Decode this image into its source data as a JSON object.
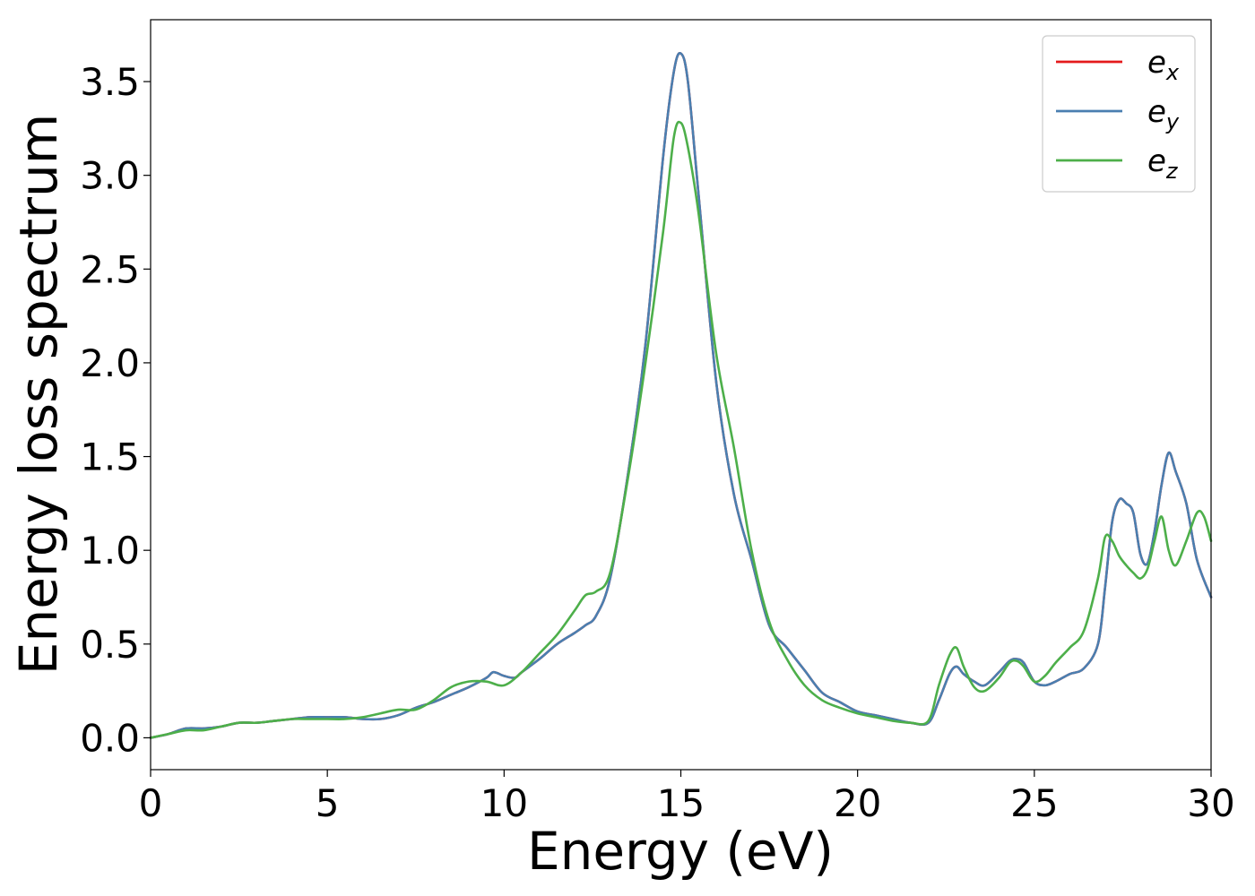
{
  "chart_data": {
    "type": "line",
    "xlabel": "Energy (eV)",
    "ylabel": "Energy loss spectrum",
    "xlim": [
      0,
      30
    ],
    "ylim": [
      -0.17,
      3.83
    ],
    "xticks": [
      0,
      5,
      10,
      15,
      20,
      25,
      30
    ],
    "xtick_labels": [
      "0",
      "5",
      "10",
      "15",
      "20",
      "25",
      "30"
    ],
    "yticks": [
      0.0,
      0.5,
      1.0,
      1.5,
      2.0,
      2.5,
      3.0,
      3.5
    ],
    "ytick_labels": [
      "0.0",
      "0.5",
      "1.0",
      "1.5",
      "2.0",
      "2.5",
      "3.0",
      "3.5"
    ],
    "grid": false,
    "legend_position": "top-right",
    "series": [
      {
        "name": "e_x",
        "legend_base": "e",
        "legend_sub": "x",
        "color": "#e41a1c",
        "x": [
          0,
          0.5,
          1,
          1.5,
          2,
          2.5,
          3,
          3.5,
          4,
          4.5,
          5,
          5.5,
          6,
          6.5,
          7,
          7.5,
          8,
          8.5,
          9,
          9.5,
          9.7,
          10,
          10.3,
          10.5,
          11,
          11.5,
          12,
          12.3,
          12.6,
          13,
          13.5,
          14,
          14.5,
          14.8,
          15,
          15.2,
          15.5,
          16,
          16.5,
          17,
          17.5,
          18,
          18.5,
          19,
          19.5,
          20,
          20.5,
          21,
          21.5,
          22,
          22.3,
          22.6,
          22.8,
          23,
          23.3,
          23.6,
          24,
          24.3,
          24.5,
          24.7,
          25,
          25.3,
          25.6,
          26,
          26.4,
          26.8,
          27,
          27.2,
          27.4,
          27.6,
          27.8,
          28,
          28.2,
          28.4,
          28.6,
          28.8,
          29,
          29.3,
          29.6,
          30
        ],
        "values": [
          0.0,
          0.02,
          0.05,
          0.05,
          0.06,
          0.08,
          0.08,
          0.09,
          0.1,
          0.11,
          0.11,
          0.11,
          0.1,
          0.1,
          0.12,
          0.16,
          0.19,
          0.23,
          0.27,
          0.32,
          0.35,
          0.33,
          0.32,
          0.35,
          0.42,
          0.5,
          0.56,
          0.6,
          0.65,
          0.85,
          1.4,
          2.1,
          3.1,
          3.55,
          3.65,
          3.5,
          2.9,
          1.9,
          1.3,
          0.95,
          0.6,
          0.48,
          0.36,
          0.24,
          0.19,
          0.14,
          0.12,
          0.1,
          0.08,
          0.08,
          0.2,
          0.34,
          0.38,
          0.34,
          0.3,
          0.28,
          0.35,
          0.41,
          0.42,
          0.4,
          0.3,
          0.28,
          0.3,
          0.34,
          0.37,
          0.5,
          0.8,
          1.15,
          1.27,
          1.25,
          1.2,
          0.98,
          0.93,
          1.1,
          1.35,
          1.52,
          1.42,
          1.25,
          0.95,
          0.75
        ]
      },
      {
        "name": "e_y",
        "legend_base": "e",
        "legend_sub": "y",
        "color": "#4a7fb0",
        "x": [
          0,
          0.5,
          1,
          1.5,
          2,
          2.5,
          3,
          3.5,
          4,
          4.5,
          5,
          5.5,
          6,
          6.5,
          7,
          7.5,
          8,
          8.5,
          9,
          9.5,
          9.7,
          10,
          10.3,
          10.5,
          11,
          11.5,
          12,
          12.3,
          12.6,
          13,
          13.5,
          14,
          14.5,
          14.8,
          15,
          15.2,
          15.5,
          16,
          16.5,
          17,
          17.5,
          18,
          18.5,
          19,
          19.5,
          20,
          20.5,
          21,
          21.5,
          22,
          22.3,
          22.6,
          22.8,
          23,
          23.3,
          23.6,
          24,
          24.3,
          24.5,
          24.7,
          25,
          25.3,
          25.6,
          26,
          26.4,
          26.8,
          27,
          27.2,
          27.4,
          27.6,
          27.8,
          28,
          28.2,
          28.4,
          28.6,
          28.8,
          29,
          29.3,
          29.6,
          30
        ],
        "values": [
          0.0,
          0.02,
          0.05,
          0.05,
          0.06,
          0.08,
          0.08,
          0.09,
          0.1,
          0.11,
          0.11,
          0.11,
          0.1,
          0.1,
          0.12,
          0.16,
          0.19,
          0.23,
          0.27,
          0.32,
          0.35,
          0.33,
          0.32,
          0.35,
          0.42,
          0.5,
          0.56,
          0.6,
          0.65,
          0.85,
          1.4,
          2.1,
          3.1,
          3.55,
          3.65,
          3.5,
          2.9,
          1.9,
          1.3,
          0.95,
          0.6,
          0.48,
          0.36,
          0.24,
          0.19,
          0.14,
          0.12,
          0.1,
          0.08,
          0.08,
          0.2,
          0.34,
          0.38,
          0.34,
          0.3,
          0.28,
          0.35,
          0.41,
          0.42,
          0.4,
          0.3,
          0.28,
          0.3,
          0.34,
          0.37,
          0.5,
          0.8,
          1.15,
          1.27,
          1.25,
          1.2,
          0.98,
          0.93,
          1.1,
          1.35,
          1.52,
          1.42,
          1.25,
          0.95,
          0.75
        ]
      },
      {
        "name": "e_z",
        "legend_base": "e",
        "legend_sub": "z",
        "color": "#4daf4a",
        "x": [
          0,
          0.5,
          1,
          1.5,
          2,
          2.5,
          3,
          3.5,
          4,
          4.5,
          5,
          5.5,
          6,
          6.5,
          7,
          7.5,
          8,
          8.5,
          9,
          9.5,
          10,
          10.5,
          11,
          11.5,
          12,
          12.3,
          12.6,
          13,
          13.5,
          14,
          14.5,
          14.8,
          15,
          15.2,
          15.5,
          16,
          16.5,
          17,
          17.5,
          18,
          18.5,
          19,
          19.5,
          20,
          20.5,
          21,
          21.5,
          22,
          22.3,
          22.6,
          22.8,
          23,
          23.3,
          23.6,
          24,
          24.3,
          24.5,
          24.7,
          25,
          25.3,
          25.6,
          26,
          26.4,
          26.8,
          27,
          27.2,
          27.4,
          27.6,
          27.8,
          28,
          28.2,
          28.4,
          28.6,
          28.8,
          29,
          29.3,
          29.6,
          29.8,
          30
        ],
        "values": [
          0.0,
          0.02,
          0.04,
          0.04,
          0.06,
          0.08,
          0.08,
          0.09,
          0.1,
          0.1,
          0.1,
          0.1,
          0.11,
          0.13,
          0.15,
          0.15,
          0.2,
          0.27,
          0.3,
          0.3,
          0.28,
          0.35,
          0.45,
          0.55,
          0.68,
          0.76,
          0.78,
          0.88,
          1.38,
          2.0,
          2.7,
          3.2,
          3.28,
          3.15,
          2.8,
          2.05,
          1.55,
          1.0,
          0.62,
          0.42,
          0.28,
          0.2,
          0.16,
          0.13,
          0.11,
          0.09,
          0.08,
          0.09,
          0.28,
          0.44,
          0.48,
          0.38,
          0.27,
          0.25,
          0.32,
          0.4,
          0.41,
          0.38,
          0.3,
          0.33,
          0.4,
          0.48,
          0.57,
          0.85,
          1.07,
          1.05,
          0.97,
          0.92,
          0.88,
          0.85,
          0.9,
          1.05,
          1.18,
          1.0,
          0.92,
          1.05,
          1.2,
          1.18,
          1.05
        ]
      }
    ]
  }
}
